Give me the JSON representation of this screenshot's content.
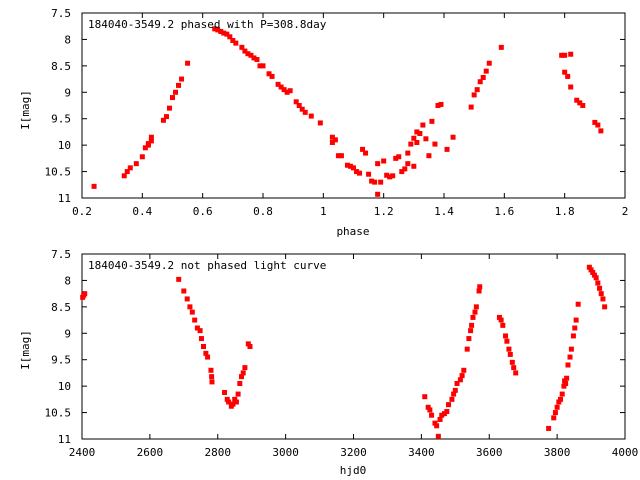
{
  "colors": {
    "points": "#ff0000",
    "axes": "#000000",
    "background": "#ffffff"
  },
  "chart_data": [
    {
      "type": "scatter",
      "title": "184040-3549.2 phased with P=308.8day",
      "xlabel": "phase",
      "ylabel": "I[mag]",
      "xlim": [
        0.2,
        2.0
      ],
      "ylim": [
        7.5,
        11
      ],
      "y_inverted": true,
      "grid": false,
      "x_ticks": [
        "0.2",
        "0.4",
        "0.6",
        "0.8",
        "1",
        "1.2",
        "1.4",
        "1.6",
        "1.8",
        "2"
      ],
      "y_ticks": [
        "7.5",
        "8",
        "8.5",
        "9",
        "9.5",
        "10",
        "10.5",
        "11"
      ],
      "series": [
        {
          "points": [
            [
              0.24,
              10.78
            ],
            [
              0.34,
              10.58
            ],
            [
              0.35,
              10.5
            ],
            [
              0.36,
              10.43
            ],
            [
              0.38,
              10.35
            ],
            [
              0.4,
              10.22
            ],
            [
              0.41,
              10.05
            ],
            [
              0.42,
              10.0
            ],
            [
              0.42,
              9.97
            ],
            [
              0.43,
              9.92
            ],
            [
              0.43,
              9.85
            ],
            [
              0.47,
              9.53
            ],
            [
              0.48,
              9.46
            ],
            [
              0.49,
              9.3
            ],
            [
              0.5,
              9.1
            ],
            [
              0.51,
              9.0
            ],
            [
              0.52,
              8.87
            ],
            [
              0.53,
              8.75
            ],
            [
              0.55,
              8.45
            ],
            [
              0.64,
              7.8
            ],
            [
              0.65,
              7.82
            ],
            [
              0.66,
              7.85
            ],
            [
              0.67,
              7.88
            ],
            [
              0.68,
              7.9
            ],
            [
              0.69,
              7.95
            ],
            [
              0.7,
              8.02
            ],
            [
              0.71,
              8.07
            ],
            [
              0.73,
              8.15
            ],
            [
              0.74,
              8.22
            ],
            [
              0.75,
              8.27
            ],
            [
              0.76,
              8.3
            ],
            [
              0.77,
              8.35
            ],
            [
              0.78,
              8.38
            ],
            [
              0.79,
              8.5
            ],
            [
              0.8,
              8.5
            ],
            [
              0.82,
              8.65
            ],
            [
              0.83,
              8.7
            ],
            [
              0.85,
              8.85
            ],
            [
              0.86,
              8.9
            ],
            [
              0.87,
              8.95
            ],
            [
              0.88,
              9.0
            ],
            [
              0.89,
              8.97
            ],
            [
              0.91,
              9.18
            ],
            [
              0.92,
              9.25
            ],
            [
              0.93,
              9.32
            ],
            [
              0.94,
              9.38
            ],
            [
              0.96,
              9.45
            ],
            [
              0.99,
              9.58
            ],
            [
              1.03,
              9.85
            ],
            [
              1.03,
              9.95
            ],
            [
              1.04,
              9.9
            ],
            [
              1.05,
              10.2
            ],
            [
              1.06,
              10.2
            ],
            [
              1.08,
              10.38
            ],
            [
              1.09,
              10.4
            ],
            [
              1.1,
              10.43
            ],
            [
              1.11,
              10.5
            ],
            [
              1.12,
              10.53
            ],
            [
              1.13,
              10.08
            ],
            [
              1.14,
              10.15
            ],
            [
              1.15,
              10.55
            ],
            [
              1.16,
              10.68
            ],
            [
              1.17,
              10.7
            ],
            [
              1.18,
              10.93
            ],
            [
              1.18,
              10.35
            ],
            [
              1.19,
              10.7
            ],
            [
              1.2,
              10.3
            ],
            [
              1.21,
              10.57
            ],
            [
              1.22,
              10.6
            ],
            [
              1.23,
              10.58
            ],
            [
              1.24,
              10.25
            ],
            [
              1.25,
              10.22
            ],
            [
              1.26,
              10.5
            ],
            [
              1.27,
              10.45
            ],
            [
              1.28,
              10.15
            ],
            [
              1.28,
              10.35
            ],
            [
              1.29,
              9.98
            ],
            [
              1.3,
              10.4
            ],
            [
              1.3,
              9.87
            ],
            [
              1.31,
              9.95
            ],
            [
              1.31,
              9.75
            ],
            [
              1.32,
              9.78
            ],
            [
              1.33,
              9.62
            ],
            [
              1.34,
              9.88
            ],
            [
              1.35,
              10.2
            ],
            [
              1.36,
              9.55
            ],
            [
              1.37,
              9.98
            ],
            [
              1.38,
              9.25
            ],
            [
              1.39,
              9.23
            ],
            [
              1.41,
              10.08
            ],
            [
              1.43,
              9.85
            ],
            [
              1.49,
              9.28
            ],
            [
              1.5,
              9.05
            ],
            [
              1.51,
              8.95
            ],
            [
              1.52,
              8.8
            ],
            [
              1.53,
              8.72
            ],
            [
              1.54,
              8.6
            ],
            [
              1.55,
              8.45
            ],
            [
              1.59,
              8.15
            ],
            [
              1.79,
              8.3
            ],
            [
              1.8,
              8.3
            ],
            [
              1.8,
              8.62
            ],
            [
              1.81,
              8.7
            ],
            [
              1.82,
              8.28
            ],
            [
              1.82,
              8.9
            ],
            [
              1.84,
              9.15
            ],
            [
              1.85,
              9.2
            ],
            [
              1.86,
              9.25
            ],
            [
              1.9,
              9.57
            ],
            [
              1.91,
              9.62
            ],
            [
              1.92,
              9.73
            ]
          ]
        }
      ]
    },
    {
      "type": "scatter",
      "title": "184040-3549.2 not phased light curve",
      "xlabel": "hjd0",
      "ylabel": "I[mag]",
      "xlim": [
        2400,
        4000
      ],
      "ylim": [
        7.5,
        11
      ],
      "y_inverted": true,
      "grid": false,
      "x_ticks": [
        "2400",
        "2600",
        "2800",
        "3000",
        "3200",
        "3400",
        "3600",
        "3800",
        "4000"
      ],
      "y_ticks": [
        "7.5",
        "8",
        "8.5",
        "9",
        "9.5",
        "10",
        "10.5",
        "11"
      ],
      "series": [
        {
          "points": [
            [
              2402,
              8.32
            ],
            [
              2405,
              8.28
            ],
            [
              2408,
              8.25
            ],
            [
              2685,
              7.98
            ],
            [
              2700,
              8.2
            ],
            [
              2710,
              8.35
            ],
            [
              2718,
              8.5
            ],
            [
              2725,
              8.6
            ],
            [
              2732,
              8.75
            ],
            [
              2740,
              8.9
            ],
            [
              2748,
              8.95
            ],
            [
              2752,
              9.1
            ],
            [
              2758,
              9.25
            ],
            [
              2765,
              9.38
            ],
            [
              2770,
              9.45
            ],
            [
              2780,
              9.7
            ],
            [
              2782,
              9.82
            ],
            [
              2783,
              9.92
            ],
            [
              2820,
              10.12
            ],
            [
              2828,
              10.25
            ],
            [
              2832,
              10.3
            ],
            [
              2840,
              10.38
            ],
            [
              2845,
              10.34
            ],
            [
              2850,
              10.25
            ],
            [
              2855,
              10.3
            ],
            [
              2860,
              10.15
            ],
            [
              2865,
              9.95
            ],
            [
              2870,
              9.82
            ],
            [
              2875,
              9.75
            ],
            [
              2880,
              9.65
            ],
            [
              2890,
              9.2
            ],
            [
              2895,
              9.25
            ],
            [
              3410,
              10.2
            ],
            [
              3420,
              10.4
            ],
            [
              3425,
              10.45
            ],
            [
              3430,
              10.55
            ],
            [
              3440,
              10.7
            ],
            [
              3445,
              10.75
            ],
            [
              3450,
              10.95
            ],
            [
              3455,
              10.63
            ],
            [
              3460,
              10.55
            ],
            [
              3468,
              10.52
            ],
            [
              3475,
              10.48
            ],
            [
              3480,
              10.35
            ],
            [
              3490,
              10.25
            ],
            [
              3495,
              10.15
            ],
            [
              3500,
              10.08
            ],
            [
              3505,
              9.95
            ],
            [
              3515,
              9.88
            ],
            [
              3520,
              9.8
            ],
            [
              3525,
              9.7
            ],
            [
              3535,
              9.3
            ],
            [
              3540,
              9.1
            ],
            [
              3545,
              8.95
            ],
            [
              3548,
              8.85
            ],
            [
              3552,
              8.7
            ],
            [
              3558,
              8.6
            ],
            [
              3562,
              8.5
            ],
            [
              3570,
              8.2
            ],
            [
              3572,
              8.12
            ],
            [
              3630,
              8.7
            ],
            [
              3635,
              8.75
            ],
            [
              3640,
              8.85
            ],
            [
              3648,
              9.05
            ],
            [
              3652,
              9.15
            ],
            [
              3658,
              9.3
            ],
            [
              3662,
              9.4
            ],
            [
              3668,
              9.55
            ],
            [
              3672,
              9.65
            ],
            [
              3678,
              9.75
            ],
            [
              3775,
              10.8
            ],
            [
              3790,
              10.6
            ],
            [
              3795,
              10.5
            ],
            [
              3800,
              10.4
            ],
            [
              3805,
              10.3
            ],
            [
              3810,
              10.25
            ],
            [
              3815,
              10.15
            ],
            [
              3820,
              10.0
            ],
            [
              3822,
              9.9
            ],
            [
              3825,
              9.95
            ],
            [
              3828,
              9.85
            ],
            [
              3832,
              9.6
            ],
            [
              3838,
              9.45
            ],
            [
              3842,
              9.3
            ],
            [
              3848,
              9.05
            ],
            [
              3852,
              8.9
            ],
            [
              3856,
              8.75
            ],
            [
              3862,
              8.45
            ],
            [
              3895,
              7.75
            ],
            [
              3900,
              7.8
            ],
            [
              3905,
              7.85
            ],
            [
              3910,
              7.9
            ],
            [
              3915,
              7.95
            ],
            [
              3920,
              8.05
            ],
            [
              3925,
              8.15
            ],
            [
              3930,
              8.25
            ],
            [
              3935,
              8.35
            ],
            [
              3940,
              8.5
            ]
          ]
        }
      ]
    }
  ]
}
